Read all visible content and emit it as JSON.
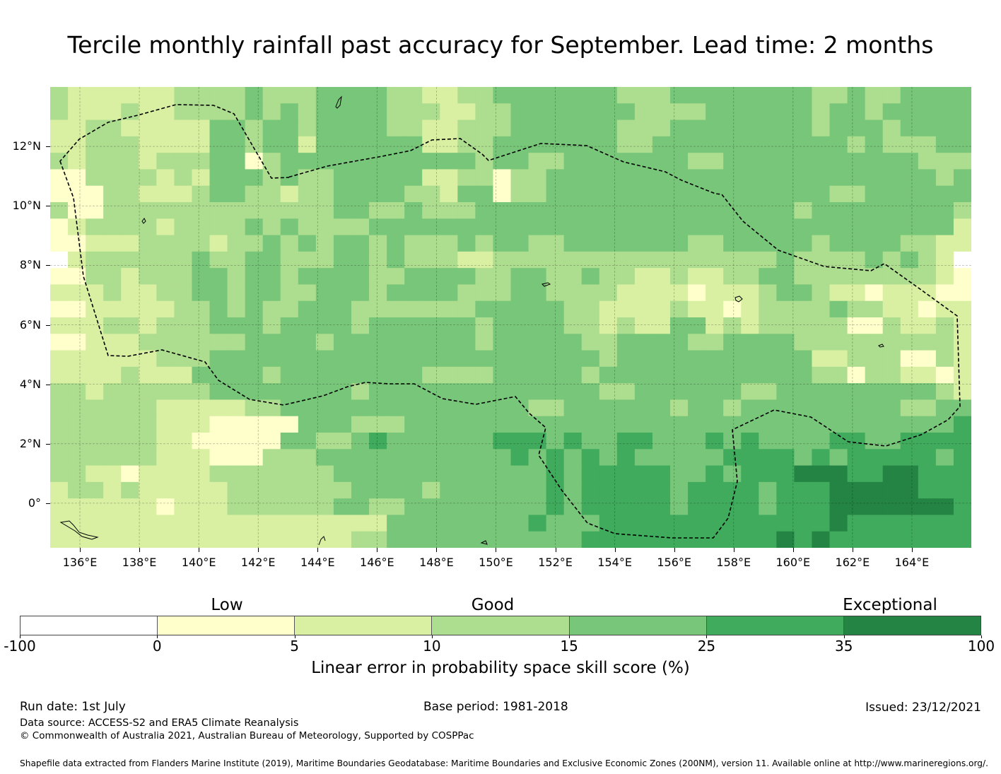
{
  "title": "Tercile monthly rainfall past accuracy for September. Lead time: 2 months",
  "map": {
    "lon_range": [
      135,
      166
    ],
    "lat_range": [
      -1.5,
      14
    ],
    "lat_ticks": [
      {
        "value": 12,
        "label": "12°N"
      },
      {
        "value": 10,
        "label": "10°N"
      },
      {
        "value": 8,
        "label": "8°N"
      },
      {
        "value": 6,
        "label": "6°N"
      },
      {
        "value": 4,
        "label": "4°N"
      },
      {
        "value": 2,
        "label": "2°N"
      },
      {
        "value": 0,
        "label": "0°"
      }
    ],
    "lon_ticks": [
      {
        "value": 136,
        "label": "136°E"
      },
      {
        "value": 138,
        "label": "138°E"
      },
      {
        "value": 140,
        "label": "140°E"
      },
      {
        "value": 142,
        "label": "142°E"
      },
      {
        "value": 144,
        "label": "144°E"
      },
      {
        "value": 146,
        "label": "146°E"
      },
      {
        "value": 148,
        "label": "148°E"
      },
      {
        "value": 150,
        "label": "150°E"
      },
      {
        "value": 152,
        "label": "152°E"
      },
      {
        "value": 154,
        "label": "154°E"
      },
      {
        "value": 156,
        "label": "156°E"
      },
      {
        "value": 158,
        "label": "158°E"
      },
      {
        "value": 160,
        "label": "160°E"
      },
      {
        "value": 162,
        "label": "162°E"
      },
      {
        "value": 164,
        "label": "164°E"
      }
    ],
    "grid_cell_deg": 0.833,
    "grid_rows_north_to_south": [
      "3222222333343334444332233444444433344444444334334444",
      "3222322333343434444333223344444443333444444344344444",
      "2233222224434434444332233344444433344444444344434444",
      "2233322224434424444442233444444433444444444443433344",
      "3233323334413444444444443443344444443344444444444333",
      "1133332324443433444442233133444444444444444444444434",
      "1113322234433233444433244133444444444444444433444444",
      "3113333333333333443343334444444444444444443444444443",
      "1233332333343433334444444444444444444444444444444442",
      "1122233332334343443433343443344444443344444344443322",
      "0233333343344333443433322333333333333333343333434320",
      "1133233344344344443344443344334332232233443333333321",
      "2223223344344334443444433344333322221222344322122211",
      "1122222334343344433333334444433222232212333343322122",
      "2223323334443444434444443444433232244232333331132232",
      "1122233333344443444444443444443344443344443333333332",
      "2222223334444444444444444444444344444444444223331132",
      "2222322244443444444443333444443444444444444331332212",
      "3323333334444444434444444444444334444443344444444432",
      "3333332222233444444444444443344444434434444444443344",
      "3333332221111144433344444444444444444444444444444445",
      "3333332211111443345444444555454455444545444455445555",
      "3333332221113334444444444454545454444455554545555545",
      "3322122223333333444444444444545555544545556665566555",
      "2332322222333333344443444444545555545555455566666555",
      "2222221222333333443344444444545555545555455566666665",
      "2222222222222222222444444445444555555555555565555555",
      "2222222222222222233444444444445555555555565655555555"
    ]
  },
  "colorbar": {
    "category_labels": [
      "Low",
      "Good",
      "Exceptional"
    ],
    "colors": [
      "#ffffff",
      "#ffffcc",
      "#d9f0a3",
      "#addd8e",
      "#78c679",
      "#41ab5d",
      "#238443"
    ],
    "tick_labels": [
      "-100",
      "0",
      "5",
      "10",
      "15",
      "25",
      "35",
      "100"
    ],
    "label": "Linear error in probability space skill score (%)"
  },
  "footer": {
    "run_date": "Run date: 1st July",
    "base_period": "Base period: 1981-2018",
    "issued": "Issued: 23/12/2021",
    "data_source": "Data source: ACCESS-S2 and ERA5 Climate Reanalysis",
    "copyright": "© Commonwealth of Australia 2021, Australian Bureau of Meteorology, Supported by COSPPac",
    "shapefile": "Shapefile data extracted from Flanders Marine Institute (2019), Maritime Boundaries Geodatabase: Maritime Boundaries and Exclusive Economic Zones (200NM), version 11. Available online at http://www.marineregions.org/."
  }
}
